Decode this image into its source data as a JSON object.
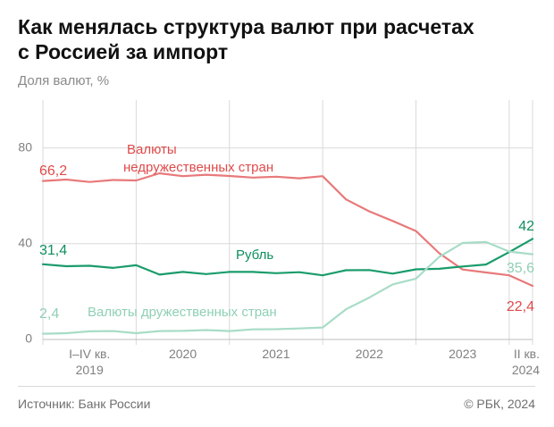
{
  "title_lines": [
    "Как менялась структура валют при расчетах",
    "с Россией за импорт"
  ],
  "unit_label": "Доля валют, %",
  "source": "Источник: Банк России",
  "copyright": "© РБК, 2024",
  "colors": {
    "unfriendly": "#e8797a",
    "ruble": "#1a9c6b",
    "friendly": "#a8dcc7",
    "unfriendly_text": "#e04a4a",
    "ruble_text": "#0e8f5c",
    "friendly_text": "#8fd0b5",
    "grid": "#d9d9d9",
    "axis_text": "#808080"
  },
  "chart_data": {
    "type": "line",
    "ylim": [
      0,
      100
    ],
    "yticks": [
      0,
      40,
      80
    ],
    "xlim": [
      0,
      21
    ],
    "x_ticks": [
      {
        "x": 2,
        "lines": [
          "I–IV кв.",
          "2019"
        ]
      },
      {
        "x": 6,
        "lines": [
          "2020"
        ]
      },
      {
        "x": 10,
        "lines": [
          "2021"
        ]
      },
      {
        "x": 14,
        "lines": [
          "2022"
        ]
      },
      {
        "x": 18,
        "lines": [
          "2023"
        ]
      },
      {
        "x": 21,
        "lines": [
          "II кв.",
          "2024"
        ]
      }
    ],
    "vlines": [
      0,
      4,
      8,
      12,
      16,
      20
    ],
    "series": [
      {
        "name": "Валюты недружественных стран",
        "key": "unfriendly",
        "label_lines": [
          "Валюты",
          "недружественных стран"
        ],
        "x": [
          0,
          1,
          2,
          3,
          4,
          5,
          6,
          7,
          8,
          9,
          10,
          11,
          12,
          13,
          14,
          15,
          16,
          17,
          18,
          19,
          20,
          21
        ],
        "values": [
          66.2,
          66.8,
          65.8,
          66.6,
          66.4,
          69.4,
          68.2,
          68.8,
          68.3,
          67.6,
          68.0,
          67.3,
          68.2,
          58.5,
          53.5,
          49.5,
          45.3,
          36.0,
          29.2,
          28.0,
          26.8,
          22.4
        ],
        "start_label": "66,2",
        "end_label": "22,4"
      },
      {
        "name": "Рубль",
        "key": "ruble",
        "label_lines": [
          "Рубль"
        ],
        "x": [
          0,
          1,
          2,
          3,
          4,
          5,
          6,
          7,
          8,
          9,
          10,
          11,
          12,
          13,
          14,
          15,
          16,
          17,
          18,
          19,
          20,
          21
        ],
        "values": [
          31.4,
          30.6,
          30.8,
          29.9,
          31.0,
          27.1,
          28.2,
          27.3,
          28.2,
          28.2,
          27.7,
          28.1,
          26.8,
          28.9,
          29.0,
          27.5,
          29.3,
          29.5,
          30.5,
          31.3,
          36.5,
          42.0
        ],
        "start_label": "31,4",
        "end_label": "42"
      },
      {
        "name": "Валюты дружественных стран",
        "key": "friendly",
        "label_lines": [
          "Валюты дружественных стран"
        ],
        "x": [
          0,
          1,
          2,
          3,
          4,
          5,
          6,
          7,
          8,
          9,
          10,
          11,
          12,
          13,
          14,
          15,
          16,
          17,
          18,
          19,
          20,
          21
        ],
        "values": [
          2.4,
          2.6,
          3.4,
          3.5,
          2.6,
          3.5,
          3.6,
          3.9,
          3.5,
          4.2,
          4.3,
          4.6,
          5.0,
          12.6,
          17.5,
          23.0,
          25.4,
          34.5,
          40.3,
          40.7,
          36.7,
          35.6
        ],
        "start_label": "2,4",
        "end_label": "35,6"
      }
    ]
  }
}
